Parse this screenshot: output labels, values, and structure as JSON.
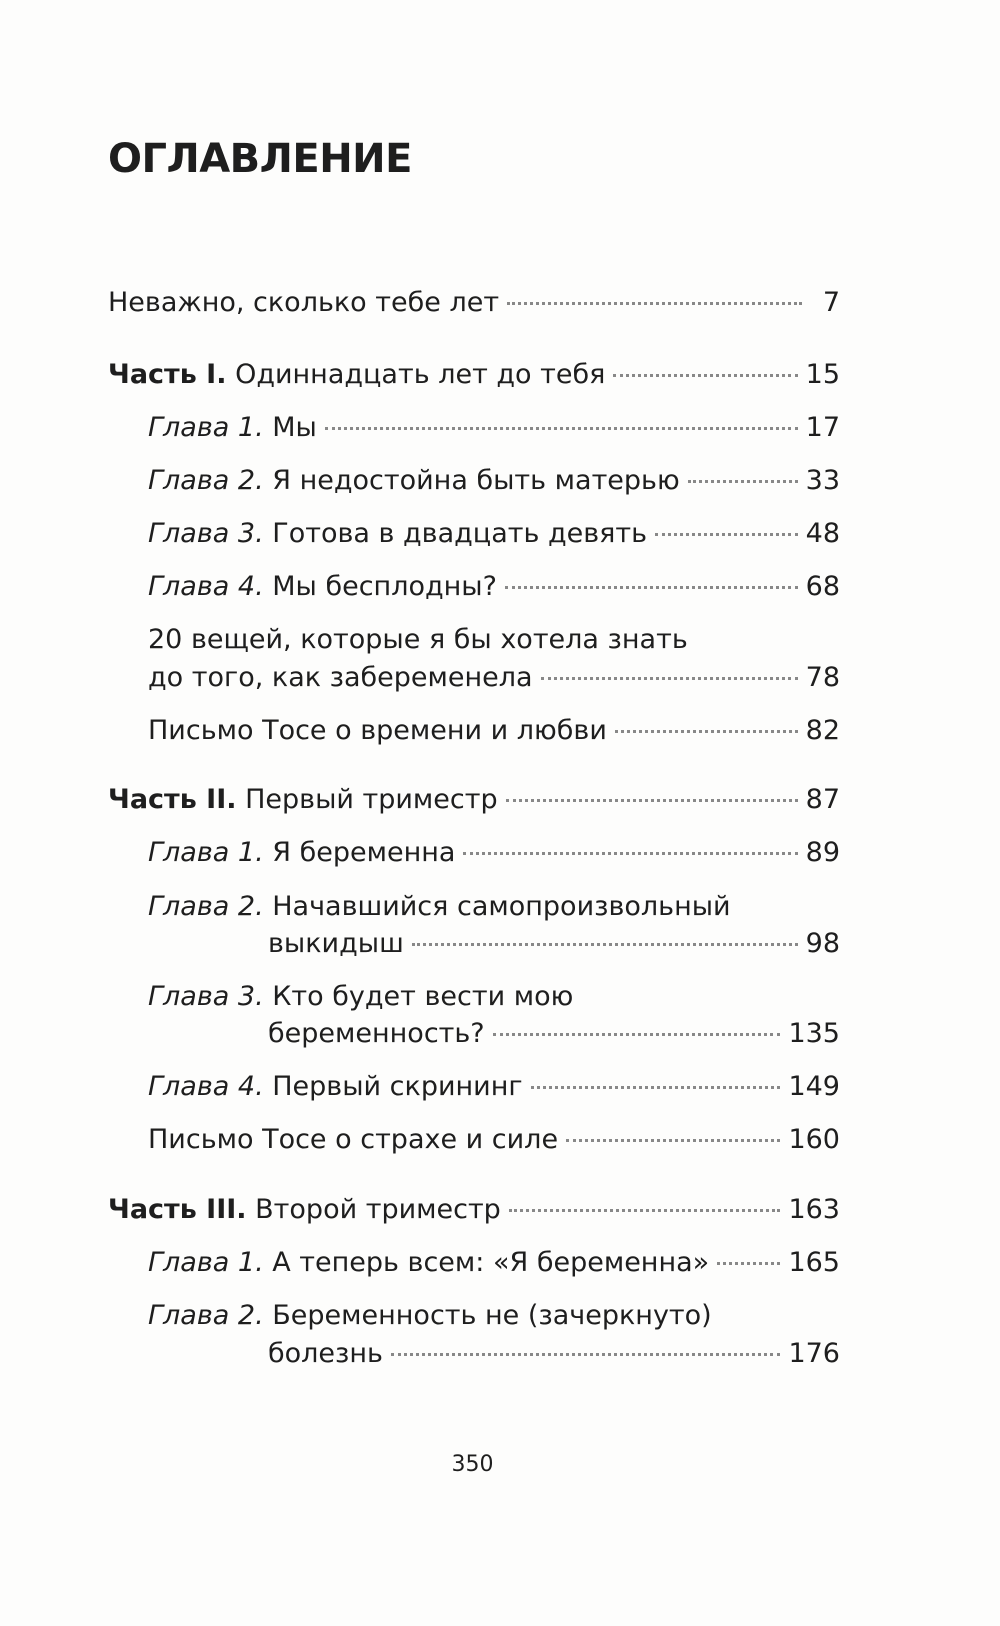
{
  "title": "ОГЛАВЛЕНИЕ",
  "entries": [
    {
      "prefix": "",
      "text": "Неважно, сколько тебе лет",
      "page": "7"
    },
    {
      "prefix": "Часть I.",
      "text": "Одиннадцать лет до тебя",
      "page": "15"
    },
    {
      "prefix": "Глава 1.",
      "text": "Мы",
      "page": "17"
    },
    {
      "prefix": "Глава 2.",
      "text": "Я недостойна быть матерью",
      "page": "33"
    },
    {
      "prefix": "Глава 3.",
      "text": "Готова в двадцать девять",
      "page": "48"
    },
    {
      "prefix": "Глава 4.",
      "text": "Мы бесплодны?",
      "page": "68"
    },
    {
      "prefix": "",
      "text": "20 вещей, которые я бы хотела знать",
      "text2": "до того, как забеременела",
      "page": "78"
    },
    {
      "prefix": "",
      "text": "Письмо Тосе о времени и любви",
      "page": "82"
    },
    {
      "prefix": "Часть II.",
      "text": "Первый триместр",
      "page": "87"
    },
    {
      "prefix": "Глава 1.",
      "text": "Я беременна",
      "page": "89"
    },
    {
      "prefix": "Глава 2.",
      "text": "Начавшийся самопроизвольный",
      "text2": "выкидыш",
      "page": "98"
    },
    {
      "prefix": "Глава 3.",
      "text": "Кто будет вести мою",
      "text2": "беременность?",
      "page": "135"
    },
    {
      "prefix": "Глава 4.",
      "text": "Первый скрининг",
      "page": "149"
    },
    {
      "prefix": "",
      "text": "Письмо Тосе о страхе и силе",
      "page": "160"
    },
    {
      "prefix": "Часть III.",
      "text": "Второй триместр",
      "page": "163"
    },
    {
      "prefix": "Глава 1.",
      "text": "А теперь всем: «Я беременна»",
      "page": "165"
    },
    {
      "prefix": "Глава 2.",
      "text": "Беременность не (зачеркнуто)",
      "text2": "болезнь",
      "page": "176"
    }
  ],
  "page_number": "350"
}
